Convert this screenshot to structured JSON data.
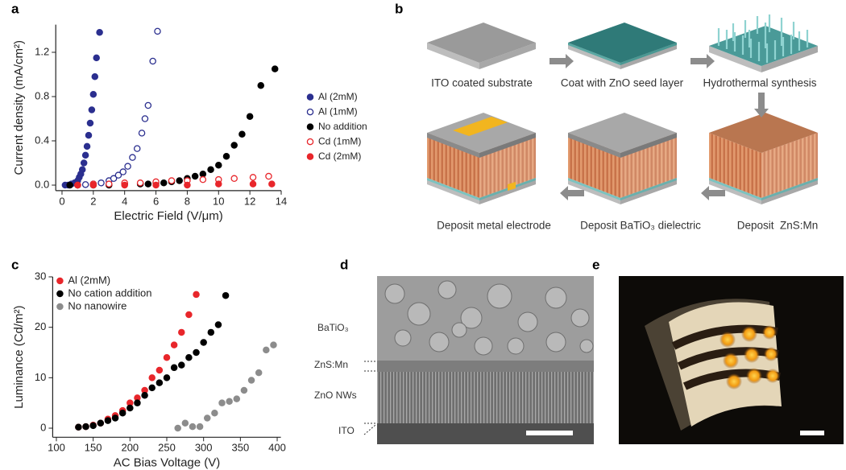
{
  "chart_data": [
    {
      "type": "scatter",
      "label": "a",
      "x_label": "Electric Field (V/μm)",
      "y_label": "Current density (mA/cm²)",
      "xlim": [
        -0.4,
        14
      ],
      "xticks": [
        0,
        2,
        4,
        6,
        8,
        10,
        12,
        14
      ],
      "ylim": [
        -0.05,
        1.45
      ],
      "yticks": [
        {
          "value": 0,
          "label": "0.0"
        },
        0.4,
        0.8,
        1.2
      ],
      "legend": "right",
      "series": [
        {
          "name": "Al (2mM)",
          "color": "#2b2f8f",
          "filled": true,
          "x": [
            0.2,
            0.4,
            0.6,
            0.8,
            1.0,
            1.1,
            1.2,
            1.3,
            1.4,
            1.5,
            1.6,
            1.7,
            1.8,
            1.9,
            2.0,
            2.1,
            2.2,
            2.4
          ],
          "values": [
            0,
            0,
            0.01,
            0.02,
            0.04,
            0.07,
            0.1,
            0.14,
            0.2,
            0.27,
            0.35,
            0.45,
            0.56,
            0.68,
            0.82,
            0.98,
            1.15,
            1.38
          ]
        },
        {
          "name": "Al (1mM)",
          "color": "#2b2f8f",
          "filled": false,
          "x": [
            0.5,
            1.0,
            1.5,
            2.0,
            2.5,
            3.0,
            3.3,
            3.6,
            3.9,
            4.2,
            4.5,
            4.8,
            5.1,
            5.3,
            5.5,
            5.8,
            6.1
          ],
          "values": [
            0,
            0,
            0.005,
            0.01,
            0.02,
            0.04,
            0.06,
            0.09,
            0.12,
            0.17,
            0.25,
            0.33,
            0.47,
            0.6,
            0.72,
            1.12,
            1.39
          ]
        },
        {
          "name": "No addition",
          "color": "#000000",
          "filled": true,
          "x": [
            0.5,
            1,
            2,
            3,
            4,
            5,
            5.5,
            6,
            6.5,
            7,
            7.5,
            8,
            8.5,
            9,
            9.5,
            10,
            10.5,
            11,
            11.5,
            12,
            12.7,
            13.6
          ],
          "values": [
            0,
            0,
            0,
            0,
            0.01,
            0.01,
            0.01,
            0.02,
            0.02,
            0.03,
            0.04,
            0.06,
            0.08,
            0.1,
            0.14,
            0.18,
            0.26,
            0.36,
            0.46,
            0.62,
            0.9,
            1.05
          ]
        },
        {
          "name": "Cd (1mM)",
          "color": "#e8262b",
          "filled": false,
          "x": [
            1,
            2,
            3,
            4,
            5,
            6,
            7,
            8,
            9,
            10,
            11,
            12.2,
            13.2
          ],
          "values": [
            0,
            0.01,
            0.01,
            0.02,
            0.02,
            0.03,
            0.04,
            0.04,
            0.05,
            0.05,
            0.06,
            0.07,
            0.08
          ]
        },
        {
          "name": "Cd (2mM)",
          "color": "#e8262b",
          "filled": true,
          "x": [
            1,
            2,
            4,
            6,
            8,
            10,
            12.2,
            13.4
          ],
          "values": [
            0,
            0,
            0,
            0,
            0,
            0.01,
            0.01,
            0.01
          ]
        }
      ]
    },
    {
      "type": "scatter",
      "label": "c",
      "x_label": "AC Bias Voltage (V)",
      "y_label": "Luminance (Cd/m²)",
      "xlim": [
        95,
        405
      ],
      "xticks": [
        100,
        150,
        200,
        250,
        300,
        350,
        400
      ],
      "ylim": [
        -1.8,
        30
      ],
      "yticks": [
        0,
        10,
        20,
        30
      ],
      "legend": "upper left",
      "series": [
        {
          "name": "Al (2mM)",
          "color": "#e8262b",
          "filled": true,
          "x": [
            130,
            140,
            150,
            160,
            170,
            180,
            190,
            200,
            210,
            220,
            230,
            240,
            250,
            260,
            270,
            280,
            290
          ],
          "values": [
            0.2,
            0.3,
            0.6,
            1,
            1.8,
            2.5,
            3.5,
            5,
            6,
            7.5,
            10,
            11.5,
            14,
            16.5,
            19,
            22.5,
            26.5
          ]
        },
        {
          "name": "No cation addition",
          "color": "#000000",
          "filled": true,
          "x": [
            130,
            140,
            150,
            160,
            170,
            180,
            190,
            200,
            210,
            220,
            230,
            240,
            250,
            260,
            270,
            280,
            290,
            300,
            310,
            320,
            330
          ],
          "values": [
            0.2,
            0.3,
            0.5,
            1,
            1.5,
            2,
            3,
            4,
            5,
            6.5,
            8,
            9,
            10,
            12,
            12.5,
            14,
            15,
            17,
            19,
            20.5,
            26.3
          ]
        },
        {
          "name": "No nanowire",
          "color": "#8c8c8c",
          "filled": true,
          "x": [
            265,
            275,
            285,
            295,
            305,
            315,
            325,
            335,
            345,
            355,
            365,
            375,
            385,
            395
          ],
          "values": [
            0,
            1,
            0.3,
            0.3,
            2,
            3,
            5,
            5.3,
            5.8,
            7.5,
            9.5,
            11,
            15.5,
            16.5
          ]
        }
      ]
    }
  ],
  "diagram": {
    "label": "b",
    "steps": [
      "ITO coated substrate",
      "Coat with ZnO seed layer",
      "Hydrothermal synthesis",
      "Deposit  ZnS:Mn",
      "Deposit BaTiO₃ dielectric",
      "Deposit metal electrode"
    ]
  },
  "sem": {
    "label": "d",
    "layers": [
      "BaTiO₃",
      "ZnS:Mn",
      "ZnO NWs",
      "ITO"
    ]
  },
  "photo": {
    "label": "e"
  }
}
